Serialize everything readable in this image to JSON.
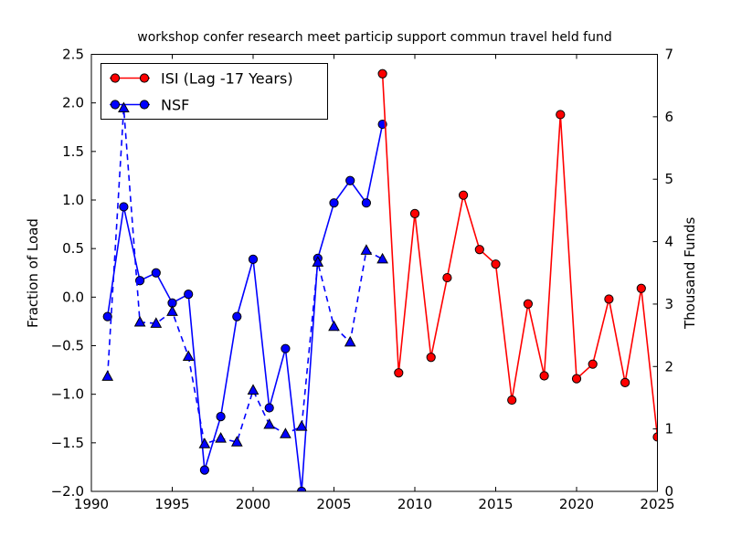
{
  "title": "workshop confer research meet particip support commun travel held fund",
  "axes": {
    "x": {
      "range": [
        1990,
        2025
      ],
      "ticks": [
        {
          "v": 1990,
          "label": "1990"
        },
        {
          "v": 1995,
          "label": "1995"
        },
        {
          "v": 2000,
          "label": "2000"
        },
        {
          "v": 2005,
          "label": "2005"
        },
        {
          "v": 2010,
          "label": "2010"
        },
        {
          "v": 2015,
          "label": "2015"
        },
        {
          "v": 2020,
          "label": "2020"
        },
        {
          "v": 2025,
          "label": "2025"
        }
      ]
    },
    "y_left": {
      "label": "Fraction of Load",
      "range": [
        -2.0,
        2.5
      ],
      "ticks": [
        {
          "v": 2.5,
          "label": "2.5"
        },
        {
          "v": 2.0,
          "label": "2.0"
        },
        {
          "v": 1.5,
          "label": "1.5"
        },
        {
          "v": 1.0,
          "label": "1.0"
        },
        {
          "v": 0.5,
          "label": "0.5"
        },
        {
          "v": 0.0,
          "label": "0.0"
        },
        {
          "v": -0.5,
          "label": "−0.5"
        },
        {
          "v": -1.0,
          "label": "−1.0"
        },
        {
          "v": -1.5,
          "label": "−1.5"
        },
        {
          "v": -2.0,
          "label": "−2.0"
        }
      ]
    },
    "y_right": {
      "label": "Thousand Funds",
      "range": [
        0,
        7
      ],
      "ticks": [
        {
          "v": 0,
          "label": "0"
        },
        {
          "v": 1,
          "label": "1"
        },
        {
          "v": 2,
          "label": "2"
        },
        {
          "v": 3,
          "label": "3"
        },
        {
          "v": 4,
          "label": "4"
        },
        {
          "v": 5,
          "label": "5"
        },
        {
          "v": 6,
          "label": "6"
        },
        {
          "v": 7,
          "label": "7"
        }
      ]
    }
  },
  "legend": {
    "entries": [
      {
        "label": "ISI (Lag -17 Years)",
        "color": "#ff0000",
        "marker": "circle",
        "linestyle": "solid"
      },
      {
        "label": "NSF",
        "color": "#0000ff",
        "marker": "circle",
        "linestyle": "solid"
      }
    ]
  },
  "colors": {
    "isi": "#ff0000",
    "nsf": "#0000ff",
    "marker_edge": "#000000",
    "axis": "#000000",
    "background": "#ffffff"
  },
  "chart_data": {
    "type": "line",
    "title": "workshop confer research meet particip support commun travel held fund",
    "xlabel": "",
    "ylabel_left": "Fraction of Load",
    "ylabel_right": "Thousand Funds",
    "xlim": [
      1990,
      2025
    ],
    "ylim_left": [
      -2.0,
      2.5
    ],
    "ylim_right": [
      0,
      7
    ],
    "grid": false,
    "legend_position": "upper left",
    "series": [
      {
        "name": "NSF",
        "axis": "left",
        "color": "#0000ff",
        "linestyle": "solid",
        "marker": "circle",
        "x": [
          1991,
          1992,
          1993,
          1994,
          1995,
          1996,
          1997,
          1998,
          1999,
          2000,
          2001,
          2002,
          2003,
          2004,
          2005,
          2006,
          2007,
          2008
        ],
        "y": [
          -0.2,
          0.93,
          0.17,
          0.25,
          -0.06,
          0.03,
          -1.78,
          -1.23,
          -0.2,
          0.39,
          -1.14,
          -0.53,
          -2.0,
          0.4,
          0.97,
          1.2,
          0.97,
          1.78
        ]
      },
      {
        "name": "NSF (right axis, dashed)",
        "axis": "right",
        "color": "#0000ff",
        "linestyle": "dashed",
        "marker": "triangle",
        "x": [
          1991,
          1992,
          1993,
          1994,
          1995,
          1996,
          1997,
          1998,
          1999,
          2000,
          2001,
          2002,
          2003,
          2004,
          2005,
          2006,
          2007,
          2008
        ],
        "y": [
          1.84,
          6.14,
          2.71,
          2.69,
          2.88,
          2.16,
          0.76,
          0.85,
          0.79,
          1.62,
          1.07,
          0.92,
          1.04,
          3.67,
          2.64,
          2.39,
          3.86,
          3.72
        ]
      },
      {
        "name": "ISI (Lag -17 Years)",
        "axis": "left",
        "color": "#ff0000",
        "linestyle": "solid",
        "marker": "circle",
        "x": [
          2008,
          2009,
          2010,
          2011,
          2012,
          2013,
          2014,
          2015,
          2016,
          2017,
          2018,
          2019,
          2020,
          2021,
          2022,
          2023,
          2024,
          2025
        ],
        "y": [
          2.3,
          -0.78,
          0.86,
          -0.62,
          0.2,
          1.05,
          0.49,
          0.34,
          -1.06,
          -0.07,
          -0.81,
          1.88,
          -0.84,
          -0.69,
          -0.02,
          -0.88,
          0.09,
          -1.44
        ]
      }
    ]
  }
}
